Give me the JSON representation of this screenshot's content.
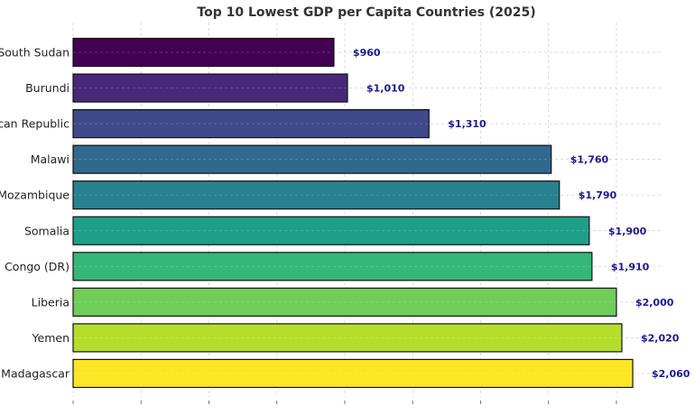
{
  "chart_data": {
    "type": "bar",
    "orientation": "horizontal",
    "title": "Top 10 Lowest GDP per Capita Countries (2025)",
    "xlabel": "",
    "ylabel": "",
    "xlim": [
      0,
      2160
    ],
    "x_tick_step": 250,
    "grid": true,
    "categories": [
      "South Sudan",
      "Burundi",
      "Central African Republic",
      "Malawi",
      "Mozambique",
      "Somalia",
      "Congo (DR)",
      "Liberia",
      "Yemen",
      "Madagascar"
    ],
    "values": [
      960,
      1010,
      1310,
      1760,
      1790,
      1900,
      1910,
      2000,
      2020,
      2060
    ],
    "value_labels": [
      "$960",
      "$1,010",
      "$1,310",
      "$1,760",
      "$1,790",
      "$1,900",
      "$1,910",
      "$2,000",
      "$2,020",
      "$2,060"
    ],
    "colors": [
      "#440154",
      "#482878",
      "#3e4a89",
      "#31688e",
      "#26828e",
      "#1f9e89",
      "#35b779",
      "#6ece58",
      "#b5de2b",
      "#fde725"
    ]
  }
}
